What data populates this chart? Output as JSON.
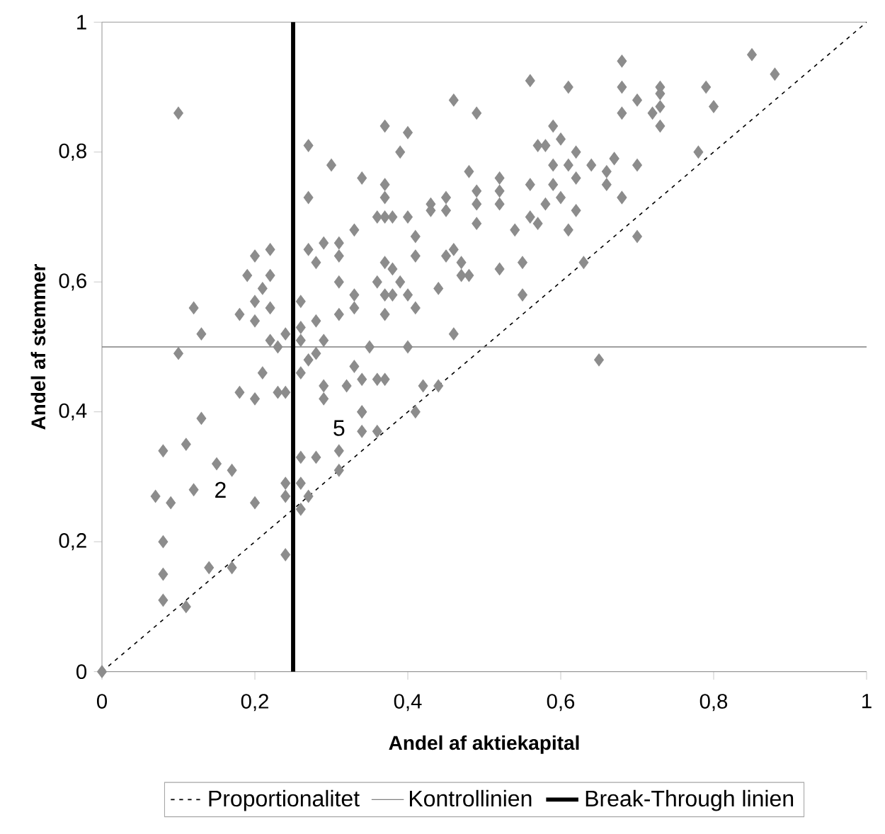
{
  "chart_data": {
    "type": "scatter",
    "xlabel": "Andel af aktiekapital",
    "ylabel": "Andel af stemmer",
    "xlim": [
      0,
      1
    ],
    "ylim": [
      0,
      1
    ],
    "xticks": [
      0,
      {
        "value": 0.2,
        "label": "0,2"
      },
      {
        "value": 0.4,
        "label": "0,4"
      },
      {
        "value": 0.6,
        "label": "0,6"
      },
      {
        "value": 0.8,
        "label": "0,8"
      },
      1
    ],
    "yticks": [
      0,
      {
        "value": 0.2,
        "label": "0,2"
      },
      {
        "value": 0.4,
        "label": "0,4"
      },
      {
        "value": 0.6,
        "label": "0,6"
      },
      {
        "value": 0.8,
        "label": "0,8"
      },
      1
    ],
    "marker": "diamond",
    "grid": false,
    "legend": "bottom",
    "annotations": [
      "2",
      "5"
    ],
    "series": [
      {
        "color": "#8c8c8c",
        "x": [
          0.1,
          0.27,
          0.3,
          0.27,
          0.34,
          0.33,
          0.29,
          0.31,
          0.31,
          0.27,
          0.28,
          0.2,
          0.22,
          0.19,
          0.22,
          0.21,
          0.2,
          0.22,
          0.12,
          0.18,
          0.2,
          0.13,
          0.24,
          0.26,
          0.31,
          0.33,
          0.33,
          0.31,
          0.28,
          0.26,
          0.29,
          0.26,
          0.22,
          0.23,
          0.1,
          0.28,
          0.27,
          0.21,
          0.26,
          0.29,
          0.29,
          0.33,
          0.32,
          0.18,
          0.2,
          0.23,
          0.24,
          0.34,
          0.13,
          0.11,
          0.08,
          0.15,
          0.17,
          0.12,
          0.07,
          0.09,
          0.2,
          0.24,
          0.24,
          0.26,
          0.27,
          0.26,
          0.28,
          0.31,
          0.31,
          0.26,
          0.08,
          0.24,
          0.14,
          0.17,
          0.08,
          0.08,
          0.11,
          0,
          0.56,
          0.61,
          0.68,
          0.68,
          0.68,
          0.46,
          0.49,
          0.37,
          0.4,
          0.39,
          0.59,
          0.57,
          0.58,
          0.6,
          0.62,
          0.59,
          0.61,
          0.64,
          0.66,
          0.67,
          0.68,
          0.66,
          0.62,
          0.59,
          0.6,
          0.58,
          0.62,
          0.61,
          0.63,
          0.48,
          0.56,
          0.52,
          0.52,
          0.49,
          0.49,
          0.52,
          0.49,
          0.56,
          0.57,
          0.54,
          0.37,
          0.37,
          0.36,
          0.37,
          0.38,
          0.4,
          0.41,
          0.43,
          0.45,
          0.43,
          0.45,
          0.37,
          0.38,
          0.41,
          0.45,
          0.46,
          0.47,
          0.36,
          0.37,
          0.38,
          0.39,
          0.4,
          0.41,
          0.37,
          0.44,
          0.47,
          0.48,
          0.52,
          0.55,
          0.55,
          0.46,
          0.35,
          0.4,
          0.34,
          0.36,
          0.37,
          0.42,
          0.44,
          0.34,
          0.41,
          0.34,
          0.36,
          0.65,
          0.85,
          0.88,
          0.73,
          0.73,
          0.7,
          0.73,
          0.72,
          0.73,
          0.79,
          0.8,
          0.78,
          0.67,
          0.7,
          0.68,
          0.7
        ],
        "values": [
          0.86,
          0.81,
          0.78,
          0.73,
          0.76,
          0.68,
          0.66,
          0.66,
          0.64,
          0.65,
          0.63,
          0.64,
          0.65,
          0.61,
          0.61,
          0.59,
          0.57,
          0.56,
          0.56,
          0.55,
          0.54,
          0.52,
          0.52,
          0.57,
          0.6,
          0.58,
          0.56,
          0.55,
          0.54,
          0.53,
          0.51,
          0.51,
          0.51,
          0.5,
          0.49,
          0.49,
          0.48,
          0.46,
          0.46,
          0.44,
          0.42,
          0.47,
          0.44,
          0.43,
          0.42,
          0.43,
          0.43,
          0.4,
          0.39,
          0.35,
          0.34,
          0.32,
          0.31,
          0.28,
          0.27,
          0.26,
          0.26,
          0.29,
          0.27,
          0.29,
          0.27,
          0.33,
          0.33,
          0.34,
          0.31,
          0.25,
          0.2,
          0.18,
          0.16,
          0.16,
          0.15,
          0.11,
          0.1,
          0,
          0.91,
          0.9,
          0.94,
          0.9,
          0.86,
          0.88,
          0.86,
          0.84,
          0.83,
          0.8,
          0.84,
          0.81,
          0.81,
          0.82,
          0.8,
          0.78,
          0.78,
          0.78,
          0.77,
          0.79,
          0.73,
          0.75,
          0.76,
          0.75,
          0.73,
          0.72,
          0.71,
          0.68,
          0.63,
          0.77,
          0.75,
          0.76,
          0.74,
          0.74,
          0.72,
          0.72,
          0.69,
          0.7,
          0.69,
          0.68,
          0.75,
          0.73,
          0.7,
          0.7,
          0.7,
          0.7,
          0.67,
          0.72,
          0.73,
          0.71,
          0.71,
          0.63,
          0.62,
          0.64,
          0.64,
          0.65,
          0.63,
          0.6,
          0.58,
          0.58,
          0.6,
          0.58,
          0.56,
          0.55,
          0.59,
          0.61,
          0.61,
          0.62,
          0.63,
          0.58,
          0.52,
          0.5,
          0.5,
          0.45,
          0.45,
          0.45,
          0.44,
          0.44,
          0.4,
          0.4,
          0.37,
          0.37,
          0.48,
          0.95,
          0.92,
          0.9,
          0.89,
          0.88,
          0.87,
          0.86,
          0.84,
          0.9,
          0.87,
          0.8,
          0.79,
          0.78,
          0.73,
          0.67
        ]
      },
      {
        "type": "line",
        "name": "Proportionalitet",
        "color": "#000000",
        "line_style": "dashed",
        "marker": "none",
        "x": [
          0,
          1
        ],
        "values": [
          0,
          1
        ]
      },
      {
        "type": "line",
        "name": "Kontrollinien",
        "color": "#808080",
        "line_style": "solid",
        "marker": "none",
        "x": [
          0,
          1
        ],
        "values": [
          0.5,
          0.5
        ]
      },
      {
        "type": "line",
        "name": "Break-Through linien",
        "color": "#000000",
        "line_style": "solid",
        "marker": "none",
        "x": [
          0.25,
          0.25
        ],
        "values": [
          0,
          1
        ]
      }
    ]
  }
}
